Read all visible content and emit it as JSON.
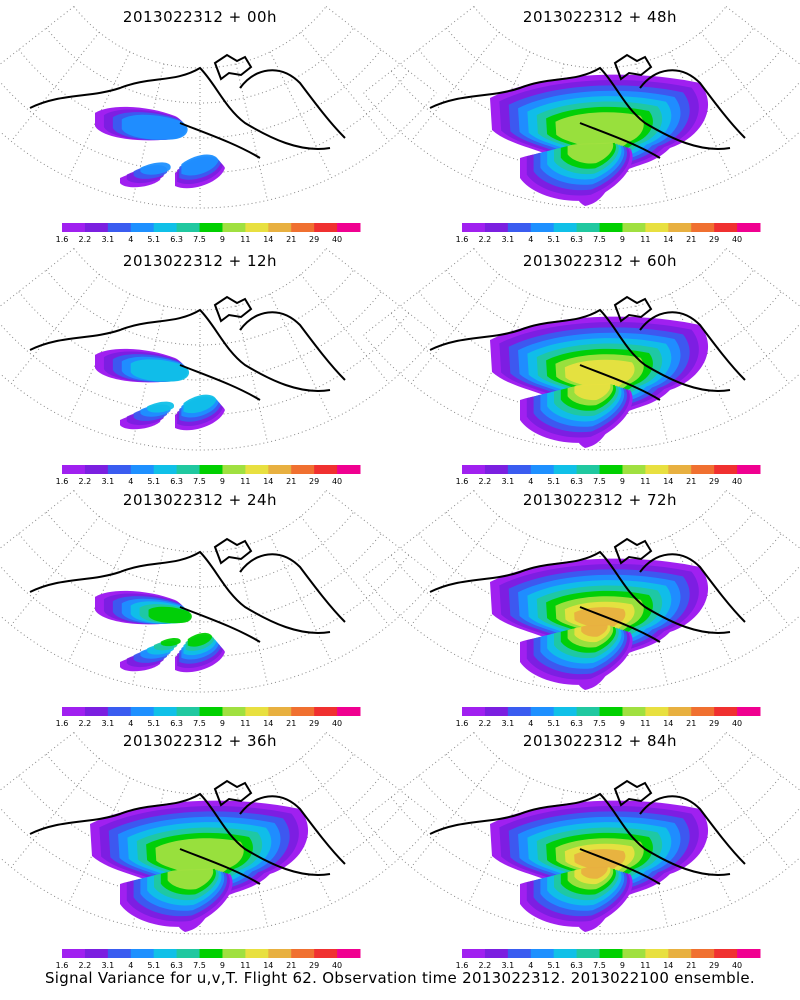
{
  "panels": [
    {
      "title": "2013022312 + 00h",
      "lead_hours": 0,
      "max_level_index": 3
    },
    {
      "title": "2013022312 + 48h",
      "lead_hours": 48,
      "max_level_index": 7
    },
    {
      "title": "2013022312 + 12h",
      "lead_hours": 12,
      "max_level_index": 4
    },
    {
      "title": "2013022312 + 60h",
      "lead_hours": 60,
      "max_level_index": 8
    },
    {
      "title": "2013022312 + 24h",
      "lead_hours": 24,
      "max_level_index": 6
    },
    {
      "title": "2013022312 + 72h",
      "lead_hours": 72,
      "max_level_index": 9
    },
    {
      "title": "2013022312 + 36h",
      "lead_hours": 36,
      "max_level_index": 7
    },
    {
      "title": "2013022312 + 84h",
      "lead_hours": 84,
      "max_level_index": 9
    }
  ],
  "colorbar": {
    "labels": [
      "1.6",
      "2.2",
      "3.1",
      "4",
      "5.1",
      "6.3",
      "7.5",
      "9",
      "11",
      "14",
      "21",
      "29",
      "40"
    ],
    "colors": [
      "#a020f0",
      "#7b1fe0",
      "#3a5cf0",
      "#1e90ff",
      "#10c0e8",
      "#20c8a0",
      "#00d000",
      "#a0e040",
      "#e8e040",
      "#e8b040",
      "#f07030",
      "#f03030",
      "#f00090"
    ]
  },
  "footer": "Signal Variance for u,v,T. Flight 62. Observation time 2013022312. 2013022100 ensemble.",
  "colors": {
    "coast": "#000000",
    "graticule": "#888888",
    "background": "#ffffff"
  }
}
